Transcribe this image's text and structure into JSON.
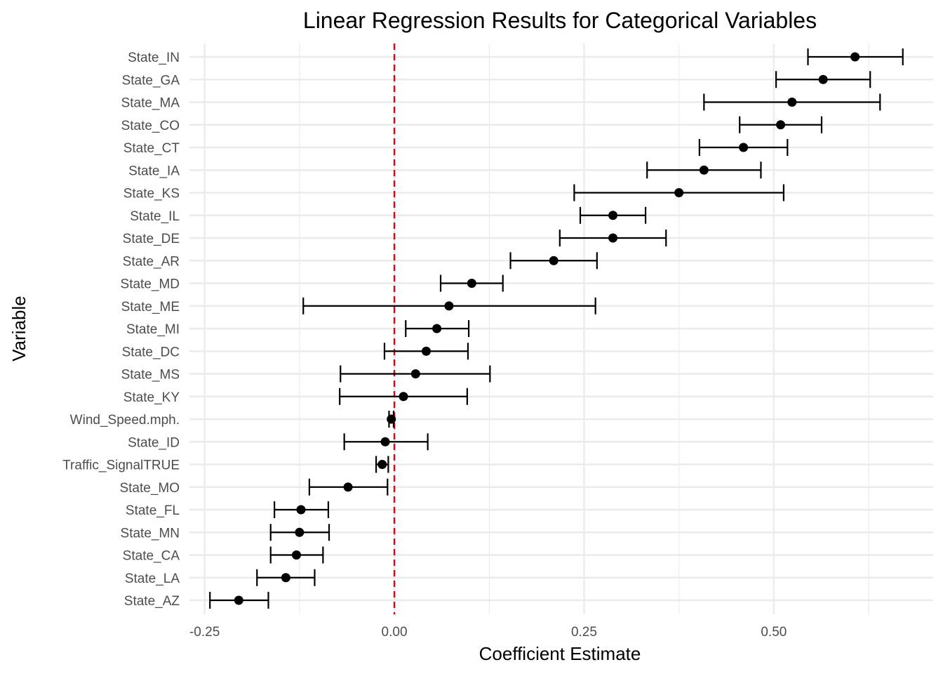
{
  "chart_data": {
    "type": "scatter",
    "subtype": "coefficient-plot-with-error-bars",
    "title": "Linear Regression Results for Categorical Variables",
    "xlabel": "Coefficient Estimate",
    "ylabel": "Variable",
    "xlim": [
      -0.27,
      0.71
    ],
    "x_ticks": [
      -0.25,
      0.0,
      0.25,
      0.5
    ],
    "x_tick_labels": [
      "-0.25",
      "0.00",
      "0.25",
      "0.50"
    ],
    "grid": true,
    "reference_line": {
      "x": 0,
      "color": "#e8000b",
      "style": "dashed"
    },
    "colors": {
      "point": "#000000",
      "errorbar": "#000000",
      "grid": "#ebebeb",
      "reference": "#e8000b"
    },
    "variables": [
      {
        "name": "State_IN",
        "estimate": 0.607,
        "lower": 0.545,
        "upper": 0.67
      },
      {
        "name": "State_GA",
        "estimate": 0.565,
        "lower": 0.503,
        "upper": 0.627
      },
      {
        "name": "State_MA",
        "estimate": 0.524,
        "lower": 0.408,
        "upper": 0.64
      },
      {
        "name": "State_CO",
        "estimate": 0.509,
        "lower": 0.455,
        "upper": 0.563
      },
      {
        "name": "State_CT",
        "estimate": 0.46,
        "lower": 0.402,
        "upper": 0.518
      },
      {
        "name": "State_IA",
        "estimate": 0.408,
        "lower": 0.333,
        "upper": 0.483
      },
      {
        "name": "State_KS",
        "estimate": 0.375,
        "lower": 0.237,
        "upper": 0.513
      },
      {
        "name": "State_IL",
        "estimate": 0.288,
        "lower": 0.245,
        "upper": 0.331
      },
      {
        "name": "State_DE",
        "estimate": 0.288,
        "lower": 0.218,
        "upper": 0.358
      },
      {
        "name": "State_AR",
        "estimate": 0.21,
        "lower": 0.153,
        "upper": 0.267
      },
      {
        "name": "State_MD",
        "estimate": 0.102,
        "lower": 0.061,
        "upper": 0.143
      },
      {
        "name": "State_ME",
        "estimate": 0.072,
        "lower": -0.12,
        "upper": 0.265
      },
      {
        "name": "State_MI",
        "estimate": 0.056,
        "lower": 0.015,
        "upper": 0.098
      },
      {
        "name": "State_DC",
        "estimate": 0.042,
        "lower": -0.013,
        "upper": 0.097
      },
      {
        "name": "State_MS",
        "estimate": 0.028,
        "lower": -0.071,
        "upper": 0.126
      },
      {
        "name": "State_KY",
        "estimate": 0.012,
        "lower": -0.072,
        "upper": 0.096
      },
      {
        "name": "Wind_Speed.mph.",
        "estimate": -0.004,
        "lower": -0.007,
        "upper": -0.001
      },
      {
        "name": "State_ID",
        "estimate": -0.012,
        "lower": -0.066,
        "upper": 0.044
      },
      {
        "name": "Traffic_SignalTRUE",
        "estimate": -0.016,
        "lower": -0.024,
        "upper": -0.008
      },
      {
        "name": "State_MO",
        "estimate": -0.061,
        "lower": -0.112,
        "upper": -0.009
      },
      {
        "name": "State_FL",
        "estimate": -0.123,
        "lower": -0.158,
        "upper": -0.087
      },
      {
        "name": "State_MN",
        "estimate": -0.125,
        "lower": -0.163,
        "upper": -0.086
      },
      {
        "name": "State_CA",
        "estimate": -0.129,
        "lower": -0.163,
        "upper": -0.094
      },
      {
        "name": "State_LA",
        "estimate": -0.143,
        "lower": -0.181,
        "upper": -0.105
      },
      {
        "name": "State_AZ",
        "estimate": -0.205,
        "lower": -0.243,
        "upper": -0.166
      }
    ]
  }
}
